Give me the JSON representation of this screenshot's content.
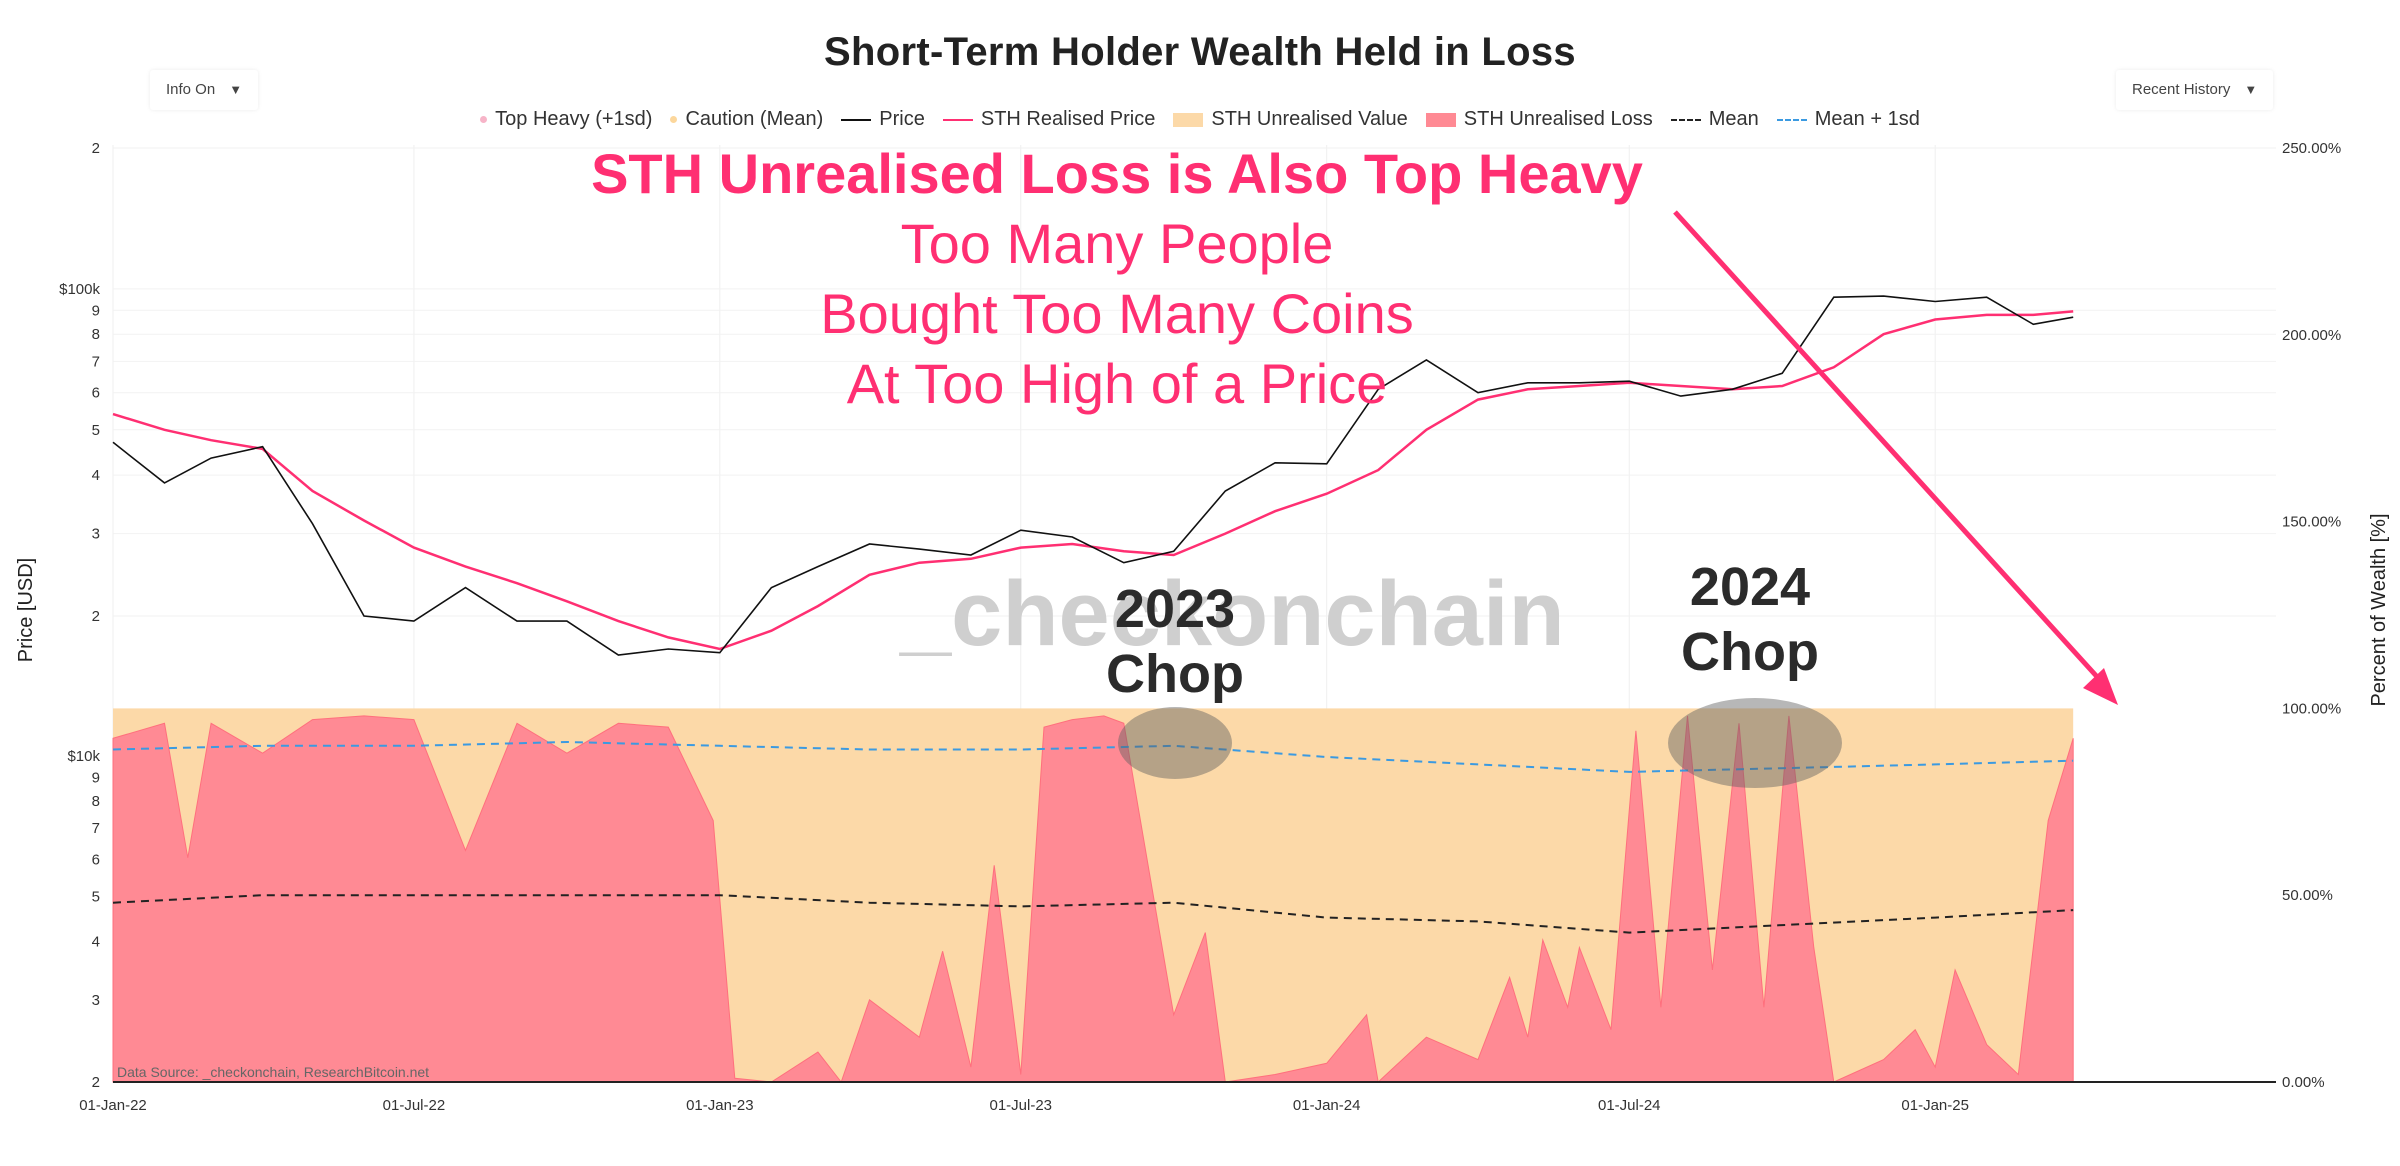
{
  "title": "Short-Term Holder Wealth Held in Loss",
  "controls": {
    "left_dropdown": "Info On",
    "right_dropdown": "Recent History"
  },
  "legend": [
    {
      "label": "Top Heavy (+1sd)",
      "type": "dot",
      "color": "#f7b4c8"
    },
    {
      "label": "Caution (Mean)",
      "type": "dot",
      "color": "#fcd79c"
    },
    {
      "label": "Price",
      "type": "line",
      "color": "#111111"
    },
    {
      "label": "STH Realised Price",
      "type": "line",
      "color": "#ff2f72"
    },
    {
      "label": "STH Unrealised Value",
      "type": "box",
      "color": "#fcd9a8"
    },
    {
      "label": "STH Unrealised Loss",
      "type": "box",
      "color": "#ff8a94"
    },
    {
      "label": "Mean",
      "type": "dash",
      "color": "#222222"
    },
    {
      "label": "Mean + 1sd",
      "type": "dash",
      "color": "#3b9ae1"
    }
  ],
  "annotations": {
    "headline": "STH Unrealised Loss is Also Top Heavy",
    "lines": [
      "Too Many People",
      "Bought Too Many Coins",
      "At Too High of a Price"
    ],
    "chop2023": [
      "2023",
      "Chop"
    ],
    "chop2024": [
      "2024",
      "Chop"
    ]
  },
  "watermark": "_checkonchain",
  "source": "Data Source: _checkonchain, ResearchBitcoin.net",
  "chart_data": {
    "type": "line",
    "title": "Short-Term Holder Wealth Held in Loss",
    "xlabel": "",
    "ylabel_left": "Price [USD]",
    "ylabel_right": "Percent of Wealth [%]",
    "x_tick_labels": [
      "01-Jan-22",
      "01-Jul-22",
      "01-Jan-23",
      "01-Jul-23",
      "01-Jan-24",
      "01-Jul-24",
      "01-Jan-25"
    ],
    "left_axis_upper": {
      "scale": "log",
      "tick_labels": [
        "2",
        "3",
        "4",
        "5",
        "6",
        "7",
        "8",
        "9",
        "$100k",
        "2"
      ],
      "tick_values": [
        20000,
        30000,
        40000,
        50000,
        60000,
        70000,
        80000,
        90000,
        100000,
        200000
      ]
    },
    "left_axis_lower": {
      "scale": "log",
      "tick_labels": [
        "2",
        "3",
        "4",
        "5",
        "6",
        "7",
        "8",
        "9",
        "$10k"
      ],
      "tick_values": [
        2000,
        3000,
        4000,
        5000,
        6000,
        7000,
        8000,
        9000,
        10000
      ]
    },
    "right_axis": {
      "tick_labels": [
        "0.00%",
        "50.00%",
        "100.00%",
        "150.00%",
        "200.00%",
        "250.00%"
      ],
      "tick_values": [
        0,
        50,
        100,
        150,
        200,
        250
      ],
      "ylim": [
        0,
        250
      ]
    },
    "series": [
      {
        "name": "Price",
        "unit": "USD",
        "x": [
          "2022-01-01",
          "2022-02-01",
          "2022-03-01",
          "2022-04-01",
          "2022-05-01",
          "2022-06-01",
          "2022-07-01",
          "2022-08-01",
          "2022-09-01",
          "2022-10-01",
          "2022-11-01",
          "2022-12-01",
          "2023-01-01",
          "2023-02-01",
          "2023-03-01",
          "2023-04-01",
          "2023-05-01",
          "2023-06-01",
          "2023-07-01",
          "2023-08-01",
          "2023-09-01",
          "2023-10-01",
          "2023-11-01",
          "2023-12-01",
          "2024-01-01",
          "2024-02-01",
          "2024-03-01",
          "2024-04-01",
          "2024-05-01",
          "2024-06-01",
          "2024-07-01",
          "2024-08-01",
          "2024-09-01",
          "2024-10-01",
          "2024-11-01",
          "2024-12-01",
          "2025-01-01",
          "2025-02-01",
          "2025-03-01",
          "2025-03-25"
        ],
        "values": [
          47000,
          38500,
          43500,
          46000,
          31500,
          20000,
          19500,
          23000,
          19500,
          19500,
          16500,
          17000,
          16700,
          23000,
          25500,
          28500,
          27800,
          27000,
          30500,
          29500,
          26000,
          27500,
          37000,
          42500,
          42300,
          61000,
          70500,
          60000,
          63000,
          63000,
          63500,
          59000,
          61000,
          66000,
          96000,
          96500,
          94000,
          96000,
          84000,
          87000
        ]
      },
      {
        "name": "STH Realised Price",
        "unit": "USD",
        "x": [
          "2022-01-01",
          "2022-02-01",
          "2022-03-01",
          "2022-04-01",
          "2022-05-01",
          "2022-06-01",
          "2022-07-01",
          "2022-08-01",
          "2022-09-01",
          "2022-10-01",
          "2022-11-01",
          "2022-12-01",
          "2023-01-01",
          "2023-02-01",
          "2023-03-01",
          "2023-04-01",
          "2023-05-01",
          "2023-06-01",
          "2023-07-01",
          "2023-08-01",
          "2023-09-01",
          "2023-10-01",
          "2023-11-01",
          "2023-12-01",
          "2024-01-01",
          "2024-02-01",
          "2024-03-01",
          "2024-04-01",
          "2024-05-01",
          "2024-06-01",
          "2024-07-01",
          "2024-08-01",
          "2024-09-01",
          "2024-10-01",
          "2024-11-01",
          "2024-12-01",
          "2025-01-01",
          "2025-02-01",
          "2025-03-01",
          "2025-03-25"
        ],
        "values": [
          54000,
          50000,
          47500,
          45500,
          37000,
          32000,
          28000,
          25500,
          23500,
          21500,
          19500,
          18000,
          17000,
          18600,
          21000,
          24500,
          26000,
          26500,
          28000,
          28500,
          27500,
          27000,
          30000,
          33500,
          36500,
          41000,
          50000,
          58000,
          61000,
          62000,
          63000,
          62000,
          61000,
          62000,
          68000,
          80000,
          86000,
          88000,
          88000,
          89500
        ]
      },
      {
        "name": "STH Unrealised Loss",
        "unit": "%",
        "x": [
          "2022-01-01",
          "2022-02-01",
          "2022-02-15",
          "2022-03-01",
          "2022-04-01",
          "2022-05-01",
          "2022-06-01",
          "2022-07-01",
          "2022-08-01",
          "2022-09-01",
          "2022-10-01",
          "2022-11-01",
          "2022-12-01",
          "2022-12-28",
          "2023-01-10",
          "2023-02-01",
          "2023-03-01",
          "2023-03-15",
          "2023-04-01",
          "2023-05-01",
          "2023-05-15",
          "2023-06-01",
          "2023-06-15",
          "2023-07-01",
          "2023-07-15",
          "2023-08-01",
          "2023-08-20",
          "2023-09-01",
          "2023-10-01",
          "2023-10-20",
          "2023-11-01",
          "2023-12-01",
          "2024-01-01",
          "2024-01-25",
          "2024-02-01",
          "2024-03-01",
          "2024-04-01",
          "2024-04-20",
          "2024-05-01",
          "2024-05-10",
          "2024-05-25",
          "2024-06-01",
          "2024-06-20",
          "2024-07-05",
          "2024-07-20",
          "2024-08-05",
          "2024-08-20",
          "2024-09-05",
          "2024-09-20",
          "2024-10-05",
          "2024-10-20",
          "2024-11-01",
          "2024-12-01",
          "2024-12-20",
          "2025-01-01",
          "2025-01-13",
          "2025-02-01",
          "2025-02-20",
          "2025-03-01",
          "2025-03-10",
          "2025-03-25"
        ],
        "values": [
          92,
          96,
          60,
          96,
          88,
          97,
          98,
          97,
          62,
          96,
          88,
          96,
          95,
          70,
          1,
          0,
          8,
          0,
          22,
          12,
          35,
          4,
          58,
          2,
          95,
          97,
          98,
          96,
          18,
          40,
          0,
          2,
          5,
          18,
          0,
          12,
          6,
          28,
          12,
          38,
          20,
          36,
          14,
          94,
          20,
          98,
          30,
          96,
          20,
          98,
          36,
          0,
          6,
          14,
          4,
          30,
          10,
          2,
          36,
          70,
          92
        ]
      },
      {
        "name": "Mean",
        "unit": "%",
        "x": [
          "2022-01-01",
          "2022-04-01",
          "2022-07-01",
          "2022-10-01",
          "2023-01-01",
          "2023-04-01",
          "2023-07-01",
          "2023-10-01",
          "2024-01-01",
          "2024-04-01",
          "2024-07-01",
          "2024-10-01",
          "2025-01-01",
          "2025-03-25"
        ],
        "values": [
          48,
          50,
          50,
          50,
          50,
          48,
          47,
          48,
          44,
          43,
          40,
          42,
          44,
          46
        ]
      },
      {
        "name": "Mean + 1sd",
        "unit": "%",
        "x": [
          "2022-01-01",
          "2022-04-01",
          "2022-07-01",
          "2022-10-01",
          "2023-01-01",
          "2023-04-01",
          "2023-07-01",
          "2023-10-01",
          "2024-01-01",
          "2024-04-01",
          "2024-07-01",
          "2024-10-01",
          "2025-01-01",
          "2025-03-25"
        ],
        "values": [
          89,
          90,
          90,
          91,
          90,
          89,
          89,
          90,
          87,
          85,
          83,
          84,
          85,
          86
        ]
      }
    ]
  }
}
